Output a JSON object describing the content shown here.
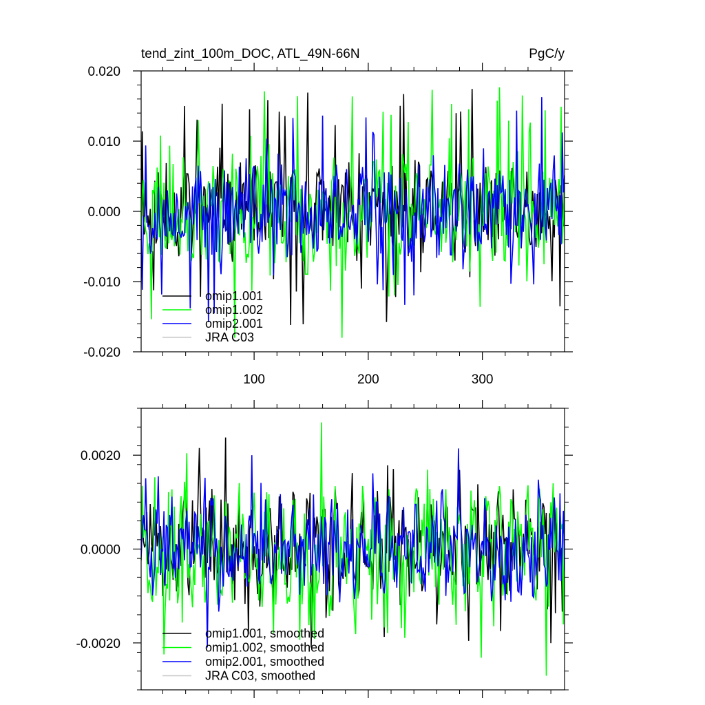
{
  "colors": {
    "omip1_001": "#000000",
    "omip1_002": "#00ff00",
    "omip2_001": "#0000ff",
    "jra_c03": "#c8c8c8",
    "frame": "#000000"
  },
  "chart_data": [
    {
      "type": "line",
      "title": "tend_zint_100m_DOC, ATL_49N-66N",
      "units": "PgC/y",
      "xlim": [
        1,
        372
      ],
      "ylim": [
        -0.02,
        0.02
      ],
      "ytick_values": [
        -0.02,
        -0.01,
        0,
        0.01,
        0.02
      ],
      "ytick_labels": [
        "-0.020",
        "-0.010",
        "0.000",
        "0.010",
        "0.020"
      ],
      "xtick_values": [
        100,
        200,
        300
      ],
      "xtick_labels": [
        "100",
        "200",
        "300"
      ],
      "legend_position": "bottom-left",
      "series": [
        {
          "name": "omip1.001",
          "color_key": "omip1_001",
          "generator": {
            "seed": 11,
            "amp": 0.0058,
            "spike": 0.0125,
            "season": 0.0016
          }
        },
        {
          "name": "omip1.002",
          "color_key": "omip1_002",
          "generator": {
            "seed": 23,
            "amp": 0.0062,
            "spike": 0.0135,
            "season": 0.0018
          }
        },
        {
          "name": "omip2.001",
          "color_key": "omip2_001",
          "generator": {
            "seed": 37,
            "amp": 0.0056,
            "spike": 0.012,
            "season": 0.0015
          }
        },
        {
          "name": "JRA C03",
          "color_key": "jra_c03",
          "generator": null
        }
      ],
      "draw_order": [
        "omip1.001",
        "omip1.002",
        "omip2.001"
      ]
    },
    {
      "type": "line",
      "title": "",
      "units": "",
      "xlim": [
        1,
        372
      ],
      "ylim": [
        -0.003,
        0.003
      ],
      "ytick_values": [
        -0.002,
        0,
        0.002
      ],
      "ytick_labels": [
        "-0.0020",
        "0.0000",
        "0.0020"
      ],
      "xtick_values": [
        100,
        200,
        300
      ],
      "xtick_labels": [
        "",
        "",
        ""
      ],
      "legend_position": "bottom-left",
      "series": [
        {
          "name": "omip1.001, smoothed",
          "color_key": "omip1_001",
          "generator": {
            "seed": 51,
            "amp": 0.0009,
            "spike": 0.0014,
            "season": 0.0004
          }
        },
        {
          "name": "omip1.002, smoothed",
          "color_key": "omip1_002",
          "generator": {
            "seed": 63,
            "amp": 0.001,
            "spike": 0.0015,
            "season": 0.0005
          }
        },
        {
          "name": "omip2.001, smoothed",
          "color_key": "omip2_001",
          "generator": {
            "seed": 77,
            "amp": 0.0008,
            "spike": 0.0013,
            "season": 0.0004
          }
        },
        {
          "name": "JRA C03, smoothed",
          "color_key": "jra_c03",
          "generator": null
        }
      ],
      "draw_order": [
        "omip1.001, smoothed",
        "omip1.002, smoothed",
        "omip2.001, smoothed"
      ]
    }
  ]
}
